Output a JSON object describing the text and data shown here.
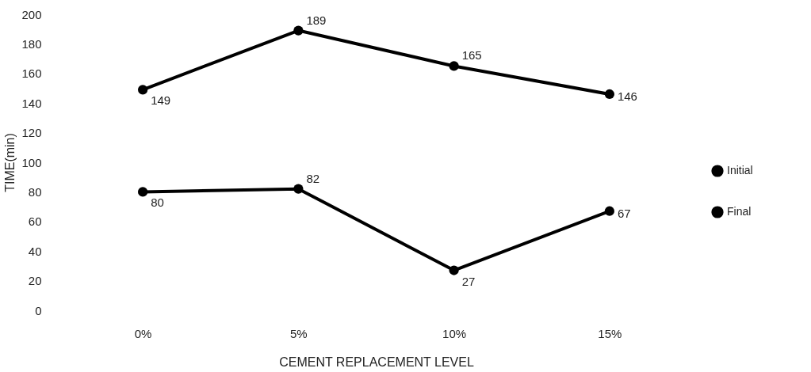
{
  "chart_data": {
    "type": "line",
    "xlabel": "CEMENT REPLACEMENT LEVEL",
    "ylabel": "TIME(min)",
    "categories": [
      "0%",
      "5%",
      "10%",
      "15%"
    ],
    "series": [
      {
        "name": "Initial",
        "color": "#000000",
        "values": [
          80,
          82,
          27,
          67
        ]
      },
      {
        "name": "Final",
        "color": "#000000",
        "values": [
          149,
          189,
          165,
          146
        ]
      }
    ],
    "ylim": [
      0,
      200
    ],
    "yticks": [
      0,
      20,
      40,
      60,
      80,
      100,
      120,
      140,
      160,
      180,
      200
    ],
    "grid": false,
    "legend": "right",
    "marker": "circle",
    "line_style": "solid",
    "data_labels": true
  }
}
